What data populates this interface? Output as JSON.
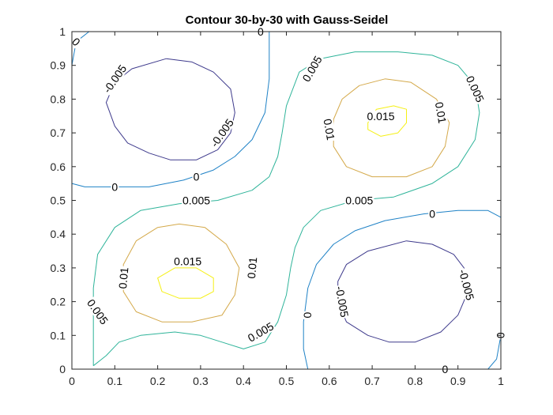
{
  "chart_data": {
    "type": "contour",
    "title": "Contour 30-by-30 with Gauss-Seidel",
    "xlabel": "",
    "ylabel": "",
    "xlim": [
      0,
      1
    ],
    "ylim": [
      0,
      1
    ],
    "x_ticks": [
      "0",
      "0.1",
      "0.2",
      "0.3",
      "0.4",
      "0.5",
      "0.6",
      "0.7",
      "0.8",
      "0.9",
      "1"
    ],
    "y_ticks": [
      "0",
      "0.1",
      "0.2",
      "0.3",
      "0.4",
      "0.5",
      "0.6",
      "0.7",
      "0.8",
      "0.9",
      "1"
    ],
    "grid": false,
    "levels": [
      {
        "value": -0.005,
        "label": "-0.005",
        "color": "#3e3a8c"
      },
      {
        "value": 0,
        "label": "0",
        "color": "#1f82c6"
      },
      {
        "value": 0.005,
        "label": "0.005",
        "color": "#2fb49a"
      },
      {
        "value": 0.01,
        "label": "0.01",
        "color": "#d4a94a"
      },
      {
        "value": 0.015,
        "label": "0.015",
        "color": "#f5f015"
      }
    ],
    "contours": [
      {
        "level": "-0.005",
        "points": [
          [
            0.22,
            0.92
          ],
          [
            0.28,
            0.91
          ],
          [
            0.33,
            0.88
          ],
          [
            0.37,
            0.83
          ],
          [
            0.38,
            0.76
          ],
          [
            0.37,
            0.7
          ],
          [
            0.34,
            0.65
          ],
          [
            0.29,
            0.62
          ],
          [
            0.23,
            0.62
          ],
          [
            0.18,
            0.64
          ],
          [
            0.13,
            0.67
          ],
          [
            0.1,
            0.72
          ],
          [
            0.08,
            0.79
          ],
          [
            0.1,
            0.85
          ],
          [
            0.14,
            0.89
          ],
          [
            0.22,
            0.92
          ]
        ]
      },
      {
        "level": "-0.005",
        "points": [
          [
            0.78,
            0.38
          ],
          [
            0.84,
            0.37
          ],
          [
            0.89,
            0.34
          ],
          [
            0.92,
            0.29
          ],
          [
            0.92,
            0.22
          ],
          [
            0.9,
            0.16
          ],
          [
            0.86,
            0.11
          ],
          [
            0.8,
            0.08
          ],
          [
            0.74,
            0.08
          ],
          [
            0.69,
            0.1
          ],
          [
            0.64,
            0.14
          ],
          [
            0.62,
            0.2
          ],
          [
            0.62,
            0.26
          ],
          [
            0.64,
            0.31
          ],
          [
            0.69,
            0.35
          ],
          [
            0.78,
            0.38
          ]
        ]
      },
      {
        "level": "0",
        "points": [
          [
            0.0,
            0.55
          ],
          [
            0.03,
            0.54
          ],
          [
            0.1,
            0.54
          ],
          [
            0.18,
            0.54
          ],
          [
            0.26,
            0.56
          ],
          [
            0.33,
            0.59
          ],
          [
            0.38,
            0.63
          ],
          [
            0.42,
            0.68
          ],
          [
            0.45,
            0.76
          ],
          [
            0.46,
            0.86
          ],
          [
            0.46,
            0.94
          ],
          [
            0.46,
            1.0
          ],
          [
            0.36,
            1.0
          ],
          [
            0.25,
            1.0
          ],
          [
            0.1,
            1.0
          ],
          [
            0.04,
            1.0
          ],
          [
            0.01,
            0.97
          ],
          [
            0.0,
            0.9
          ],
          [
            0.0,
            0.75
          ],
          [
            0.0,
            0.55
          ]
        ]
      },
      {
        "level": "0",
        "points": [
          [
            1.0,
            0.45
          ],
          [
            0.97,
            0.47
          ],
          [
            0.9,
            0.47
          ],
          [
            0.82,
            0.46
          ],
          [
            0.73,
            0.44
          ],
          [
            0.66,
            0.41
          ],
          [
            0.61,
            0.37
          ],
          [
            0.57,
            0.31
          ],
          [
            0.55,
            0.24
          ],
          [
            0.54,
            0.14
          ],
          [
            0.54,
            0.06
          ],
          [
            0.55,
            0.0
          ],
          [
            0.64,
            0.0
          ],
          [
            0.75,
            0.0
          ],
          [
            0.88,
            0.0
          ],
          [
            0.97,
            0.0
          ],
          [
            0.99,
            0.03
          ],
          [
            1.0,
            0.1
          ],
          [
            1.0,
            0.25
          ],
          [
            1.0,
            0.45
          ]
        ]
      },
      {
        "level": "0.005",
        "points": [
          [
            0.05,
            0.01
          ],
          [
            0.08,
            0.04
          ],
          [
            0.11,
            0.08
          ],
          [
            0.16,
            0.1
          ],
          [
            0.24,
            0.11
          ],
          [
            0.3,
            0.1
          ],
          [
            0.35,
            0.08
          ],
          [
            0.4,
            0.06
          ],
          [
            0.45,
            0.08
          ],
          [
            0.48,
            0.14
          ],
          [
            0.5,
            0.22
          ],
          [
            0.51,
            0.3
          ],
          [
            0.52,
            0.36
          ],
          [
            0.54,
            0.42
          ],
          [
            0.58,
            0.47
          ],
          [
            0.66,
            0.5
          ],
          [
            0.75,
            0.51
          ],
          [
            0.84,
            0.55
          ],
          [
            0.9,
            0.6
          ],
          [
            0.94,
            0.68
          ],
          [
            0.95,
            0.76
          ],
          [
            0.94,
            0.84
          ],
          [
            0.9,
            0.9
          ],
          [
            0.84,
            0.93
          ],
          [
            0.76,
            0.94
          ],
          [
            0.66,
            0.94
          ],
          [
            0.58,
            0.92
          ],
          [
            0.53,
            0.88
          ],
          [
            0.5,
            0.78
          ],
          [
            0.49,
            0.7
          ],
          [
            0.48,
            0.63
          ],
          [
            0.46,
            0.57
          ],
          [
            0.42,
            0.53
          ],
          [
            0.34,
            0.5
          ],
          [
            0.25,
            0.49
          ],
          [
            0.16,
            0.47
          ],
          [
            0.1,
            0.42
          ],
          [
            0.06,
            0.34
          ],
          [
            0.05,
            0.24
          ],
          [
            0.05,
            0.12
          ],
          [
            0.05,
            0.01
          ]
        ]
      },
      {
        "level": "0.01",
        "points": [
          [
            0.25,
            0.43
          ],
          [
            0.31,
            0.42
          ],
          [
            0.36,
            0.37
          ],
          [
            0.39,
            0.3
          ],
          [
            0.38,
            0.22
          ],
          [
            0.35,
            0.16
          ],
          [
            0.28,
            0.14
          ],
          [
            0.21,
            0.14
          ],
          [
            0.15,
            0.17
          ],
          [
            0.12,
            0.23
          ],
          [
            0.12,
            0.31
          ],
          [
            0.15,
            0.38
          ],
          [
            0.2,
            0.42
          ],
          [
            0.25,
            0.43
          ]
        ]
      },
      {
        "level": "0.01",
        "points": [
          [
            0.73,
            0.86
          ],
          [
            0.79,
            0.85
          ],
          [
            0.85,
            0.8
          ],
          [
            0.88,
            0.73
          ],
          [
            0.87,
            0.66
          ],
          [
            0.84,
            0.6
          ],
          [
            0.78,
            0.57
          ],
          [
            0.7,
            0.57
          ],
          [
            0.64,
            0.6
          ],
          [
            0.61,
            0.66
          ],
          [
            0.61,
            0.74
          ],
          [
            0.63,
            0.8
          ],
          [
            0.67,
            0.84
          ],
          [
            0.73,
            0.86
          ]
        ]
      },
      {
        "level": "0.015",
        "points": [
          [
            0.24,
            0.3
          ],
          [
            0.29,
            0.3
          ],
          [
            0.33,
            0.27
          ],
          [
            0.33,
            0.23
          ],
          [
            0.3,
            0.21
          ],
          [
            0.25,
            0.21
          ],
          [
            0.21,
            0.23
          ],
          [
            0.2,
            0.27
          ],
          [
            0.24,
            0.3
          ]
        ]
      },
      {
        "level": "0.015",
        "points": [
          [
            0.69,
            0.73
          ],
          [
            0.71,
            0.77
          ],
          [
            0.75,
            0.78
          ],
          [
            0.78,
            0.77
          ],
          [
            0.78,
            0.73
          ],
          [
            0.76,
            0.7
          ],
          [
            0.72,
            0.69
          ],
          [
            0.69,
            0.71
          ],
          [
            0.69,
            0.73
          ]
        ]
      }
    ],
    "labels": [
      {
        "text": "0",
        "x": 0.01,
        "y": 0.97,
        "angle": 45
      },
      {
        "text": "0",
        "x": 0.44,
        "y": 1.0,
        "angle": 0
      },
      {
        "text": "-0.005",
        "x": 0.1,
        "y": 0.86,
        "angle": -55
      },
      {
        "text": "-0.005",
        "x": 0.35,
        "y": 0.7,
        "angle": -55
      },
      {
        "text": "0",
        "x": 0.29,
        "y": 0.57,
        "angle": 0
      },
      {
        "text": "0",
        "x": 0.1,
        "y": 0.54,
        "angle": 0
      },
      {
        "text": "0.005",
        "x": 0.29,
        "y": 0.5,
        "angle": 0
      },
      {
        "text": "0.005",
        "x": 0.56,
        "y": 0.89,
        "angle": -60
      },
      {
        "text": "0.005",
        "x": 0.94,
        "y": 0.83,
        "angle": 65
      },
      {
        "text": "0.015",
        "x": 0.72,
        "y": 0.75,
        "angle": 0
      },
      {
        "text": "0.01",
        "x": 0.86,
        "y": 0.76,
        "angle": 80
      },
      {
        "text": "0.01",
        "x": 0.6,
        "y": 0.71,
        "angle": 80
      },
      {
        "text": "0.005",
        "x": 0.67,
        "y": 0.5,
        "angle": 0
      },
      {
        "text": "0",
        "x": 0.84,
        "y": 0.46,
        "angle": 0
      },
      {
        "text": "0.015",
        "x": 0.27,
        "y": 0.32,
        "angle": 0
      },
      {
        "text": "0.01",
        "x": 0.12,
        "y": 0.27,
        "angle": -85
      },
      {
        "text": "0.01",
        "x": 0.42,
        "y": 0.3,
        "angle": -85
      },
      {
        "text": "0.005",
        "x": 0.06,
        "y": 0.17,
        "angle": 55
      },
      {
        "text": "0.005",
        "x": 0.44,
        "y": 0.11,
        "angle": -30
      },
      {
        "text": "-0.005",
        "x": 0.63,
        "y": 0.2,
        "angle": 80
      },
      {
        "text": "-0.005",
        "x": 0.92,
        "y": 0.25,
        "angle": 75
      },
      {
        "text": "0",
        "x": 0.55,
        "y": 0.16,
        "angle": 90
      },
      {
        "text": "0",
        "x": 1.0,
        "y": 0.1,
        "angle": 90
      },
      {
        "text": "0",
        "x": 0.87,
        "y": 0.0,
        "angle": 0
      }
    ]
  }
}
